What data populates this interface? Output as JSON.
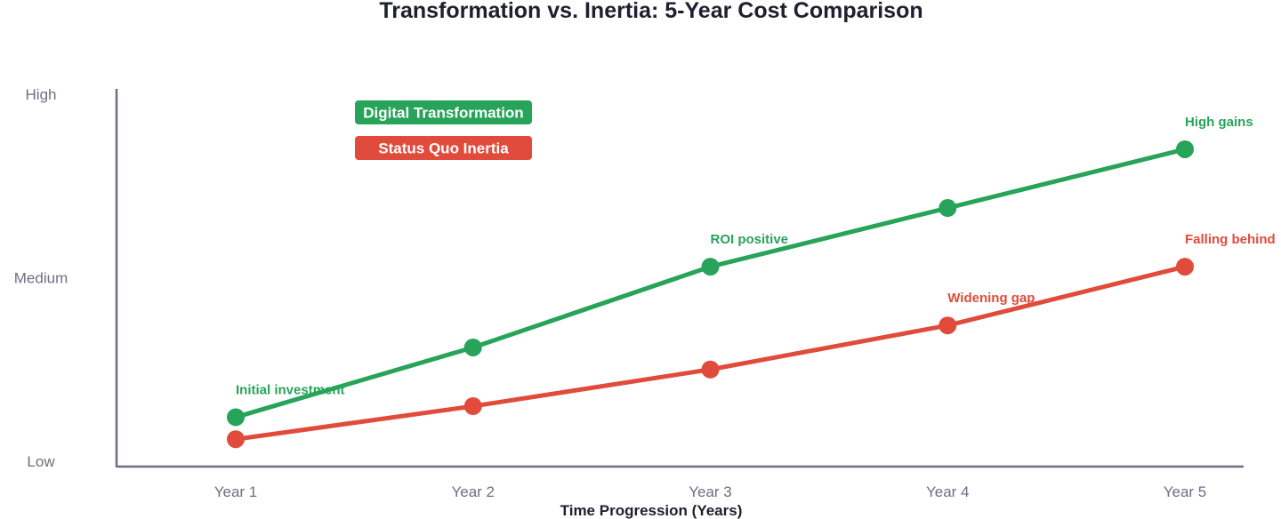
{
  "chart_data": {
    "type": "line",
    "title": "Transformation vs. Inertia: 5-Year Cost Comparison",
    "xlabel": "Time Progression (Years)",
    "ylabel": "",
    "categories": [
      "Year 1",
      "Year 2",
      "Year 3",
      "Year 4",
      "Year 5"
    ],
    "y_ticks": [
      {
        "value": 0,
        "label": "Low"
      },
      {
        "value": 50,
        "label": "Medium"
      },
      {
        "value": 100,
        "label": "High"
      }
    ],
    "ylim": [
      0,
      100
    ],
    "series": [
      {
        "name": "Digital Transformation",
        "color": "#27a35a",
        "values": [
          12,
          31,
          53,
          69,
          85
        ],
        "annotations": [
          {
            "index": 0,
            "text": "Initial investment"
          },
          {
            "index": 2,
            "text": "ROI positive"
          },
          {
            "index": 4,
            "text": "High gains"
          }
        ]
      },
      {
        "name": "Status Quo Inertia",
        "color": "#e04b3c",
        "values": [
          6,
          15,
          25,
          37,
          53
        ],
        "annotations": [
          {
            "index": 3,
            "text": "Widening gap"
          },
          {
            "index": 4,
            "text": "Falling behind"
          }
        ]
      }
    ],
    "legend": "top-left",
    "grid": false
  }
}
